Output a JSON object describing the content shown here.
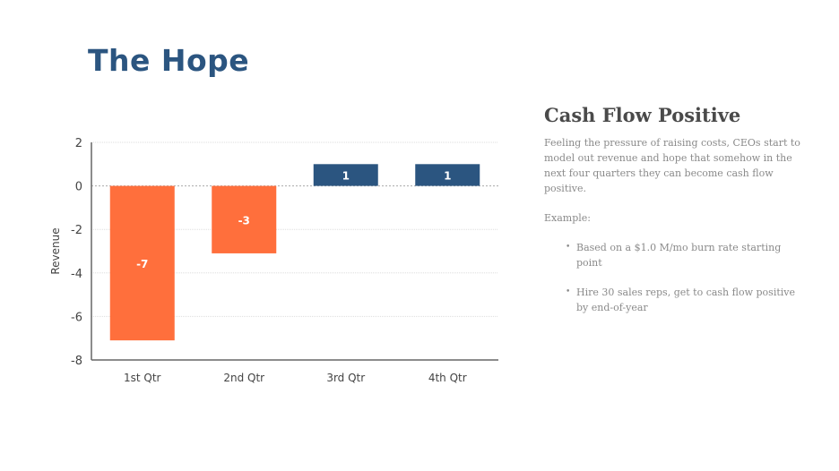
{
  "slide": {
    "title": "The Hope"
  },
  "side": {
    "heading": "Cash Flow Positive",
    "paragraph": "Feeling the pressure of raising costs, CEOs start to model out revenue and hope that somehow in the next four quarters they can become cash flow positive.",
    "example_label": "Example:",
    "bullets": [
      "Based on a $1.0 M/mo burn rate starting point",
      "Hire 30 sales reps, get to cash flow positive by end-of-year"
    ]
  },
  "chart_data": {
    "type": "bar",
    "title": "",
    "xlabel": "",
    "ylabel": "Revenue",
    "categories": [
      "1st Qtr",
      "2nd Qtr",
      "3rd Qtr",
      "4th Qtr"
    ],
    "values": [
      -7.1,
      -3.1,
      1,
      1
    ],
    "data_labels": [
      "-7",
      "-3",
      "1",
      "1"
    ],
    "ylim": [
      -8,
      2
    ],
    "yticks": [
      "2",
      "0",
      "-2",
      "-4",
      "-6",
      "-8"
    ],
    "ytick_values": [
      2,
      0,
      -2,
      -4,
      -6,
      -8
    ],
    "grid": true,
    "colors": {
      "negative": "#ff6f3c",
      "positive": "#2b5580",
      "text": "#444444",
      "grid": "#dddddd"
    }
  }
}
